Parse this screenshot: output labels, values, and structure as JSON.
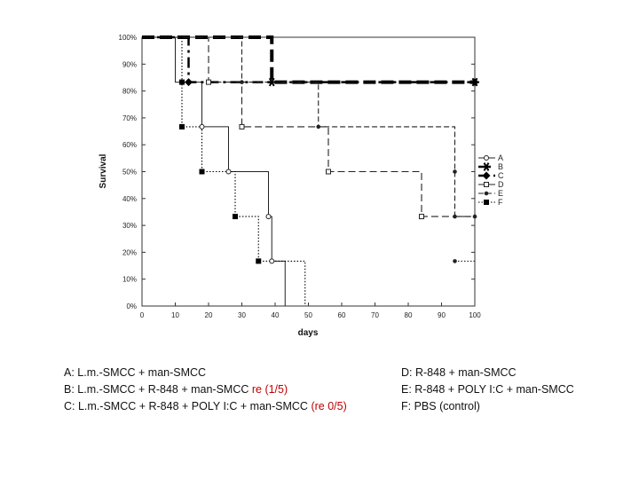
{
  "chart_data": {
    "type": "line",
    "xlabel": "days",
    "ylabel": "Survival",
    "xlim": [
      0,
      100
    ],
    "ylim": [
      0,
      100
    ],
    "x_ticks": [
      "0",
      "10",
      "20",
      "30",
      "40",
      "50",
      "60",
      "70",
      "80",
      "90",
      "100"
    ],
    "y_ticks": [
      "0%",
      "10%",
      "20%",
      "30%",
      "40%",
      "50%",
      "60%",
      "70%",
      "80%",
      "90%",
      "100%"
    ],
    "legend_position": "right",
    "series": [
      {
        "name": "A",
        "color": "#222222",
        "marker": "open-circle",
        "dash": "",
        "steps": [
          [
            0,
            100
          ],
          [
            10,
            83.3
          ],
          [
            18,
            66.7
          ],
          [
            26,
            50
          ],
          [
            38,
            33.3
          ],
          [
            39,
            16.7
          ],
          [
            43,
            0
          ]
        ],
        "markers": [
          [
            18,
            66.7
          ],
          [
            26,
            50
          ],
          [
            38,
            33.3
          ],
          [
            39,
            16.7
          ]
        ]
      },
      {
        "name": "B",
        "color": "#000000",
        "marker": "asterisk",
        "dash": "bold-dash",
        "steps": [
          [
            0,
            100
          ],
          [
            39,
            83.3
          ],
          [
            100,
            83.3
          ]
        ],
        "markers": [
          [
            39,
            83.3
          ],
          [
            100,
            83.3
          ]
        ]
      },
      {
        "name": "C",
        "color": "#000000",
        "marker": "diamond",
        "dash": "long-dash",
        "steps": [
          [
            0,
            100
          ],
          [
            14,
            83.3
          ],
          [
            100,
            83.3
          ]
        ],
        "markers": [
          [
            14,
            83.3
          ],
          [
            100,
            83.3
          ]
        ]
      },
      {
        "name": "D",
        "color": "#222222",
        "marker": "open-square",
        "dash": "dash",
        "steps": [
          [
            0,
            100
          ],
          [
            20,
            83.3
          ],
          [
            30,
            66.7
          ],
          [
            56,
            50
          ],
          [
            84,
            33.3
          ],
          [
            100,
            33.3
          ]
        ],
        "markers": [
          [
            20,
            83.3
          ],
          [
            30,
            66.7
          ],
          [
            56,
            50
          ],
          [
            84,
            33.3
          ]
        ]
      },
      {
        "name": "E",
        "color": "#222222",
        "marker": "dot",
        "dash": "short-dash",
        "steps": [
          [
            0,
            100
          ],
          [
            30,
            83.3
          ],
          [
            53,
            66.7
          ],
          [
            94,
            50
          ],
          [
            94,
            33.3
          ],
          [
            100,
            33.3
          ]
        ],
        "markers": [
          [
            30,
            83.3
          ],
          [
            53,
            66.7
          ],
          [
            94,
            50
          ],
          [
            94,
            33.3
          ],
          [
            100,
            33.3
          ]
        ]
      },
      {
        "name": "F",
        "color": "#000000",
        "marker": "filled-square",
        "dash": "dotted",
        "steps": [
          [
            0,
            100
          ],
          [
            12,
            83.3
          ],
          [
            12,
            66.7
          ],
          [
            18,
            50
          ],
          [
            28,
            33.3
          ],
          [
            35,
            16.7
          ],
          [
            39,
            16.7
          ],
          [
            49,
            0
          ]
        ],
        "markers": [
          [
            12,
            83.3
          ],
          [
            12,
            66.7
          ],
          [
            18,
            50
          ],
          [
            28,
            33.3
          ],
          [
            35,
            16.7
          ]
        ]
      },
      {
        "name": "E-tail",
        "color": "#222222",
        "marker": "dot",
        "dash": "dotted",
        "steps": [
          [
            94,
            16.7
          ],
          [
            100,
            16.7
          ]
        ],
        "markers": [
          [
            94,
            16.7
          ]
        ]
      }
    ]
  },
  "caption_left": [
    {
      "text": "A: L.m.-SMCC + man-SMCC",
      "note": ""
    },
    {
      "text": "B: L.m.-SMCC + R-848 + man-SMCC  ",
      "note": "re (1/5)"
    },
    {
      "text": "C: L.m.-SMCC + R-848 + POLY I:C + man-SMCC ",
      "note": "(re 0/5)"
    }
  ],
  "caption_right": [
    {
      "text": "D: R-848 + man-SMCC"
    },
    {
      "text": "E: R-848 + POLY I:C + man-SMCC"
    },
    {
      "text": "F: PBS (control)"
    }
  ],
  "colors": {
    "note": "#c00000",
    "axes": "#222222"
  }
}
